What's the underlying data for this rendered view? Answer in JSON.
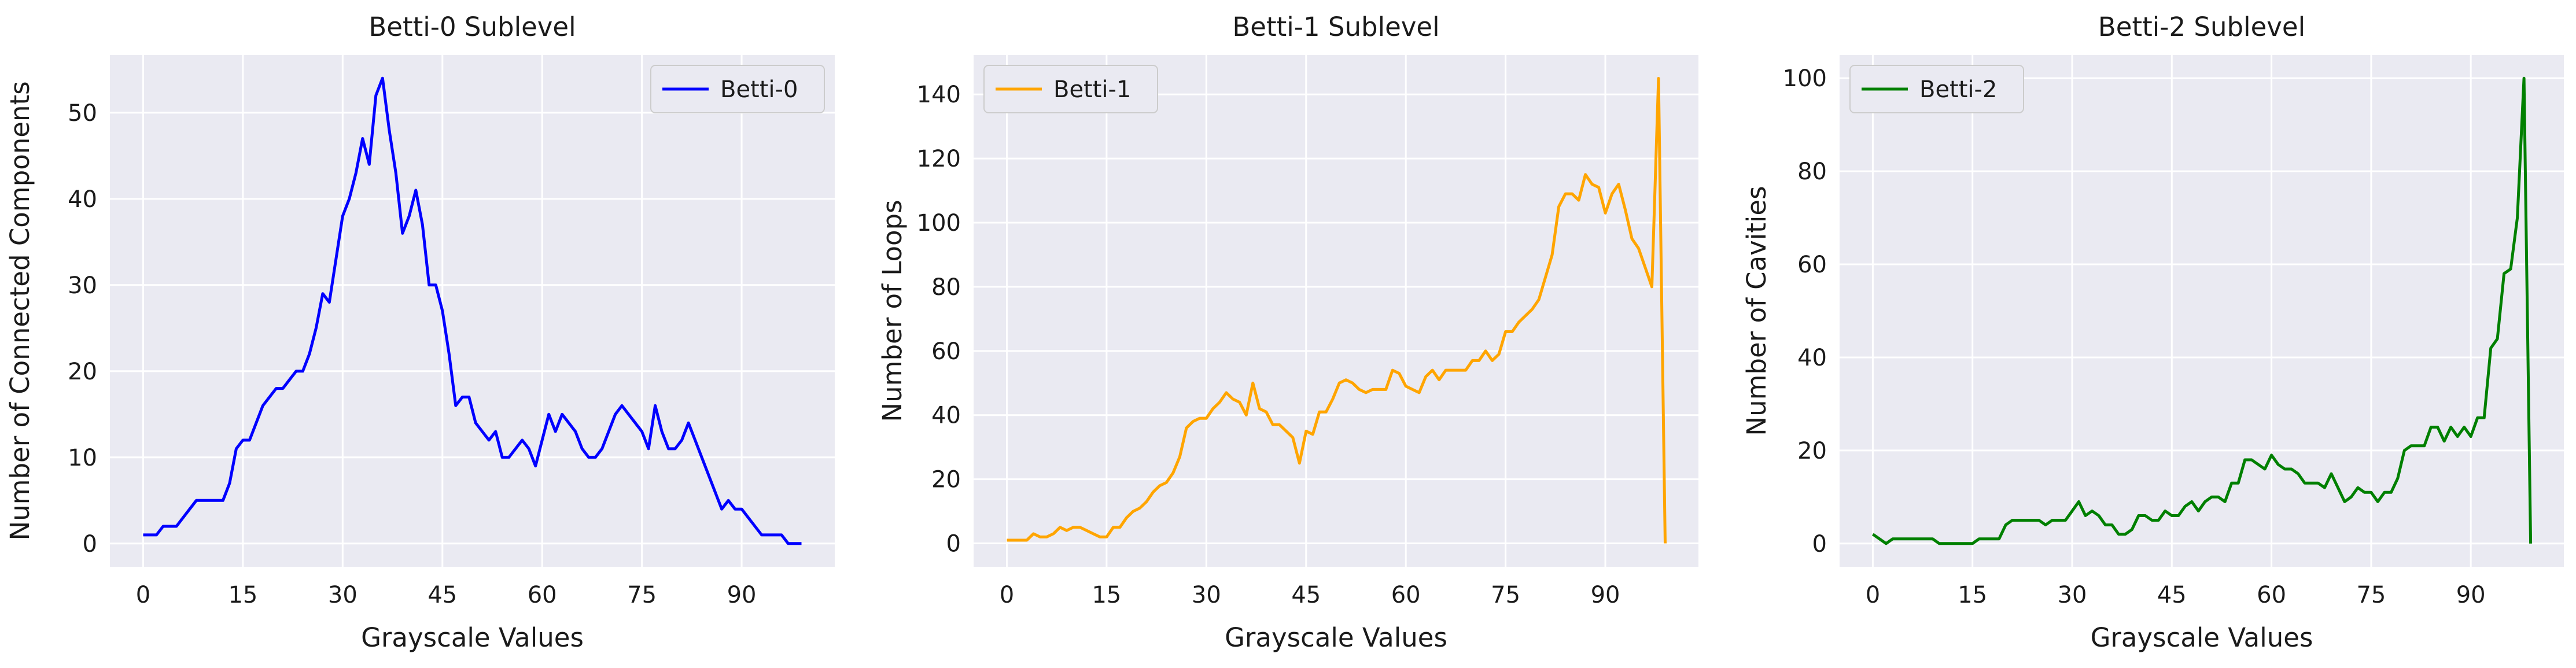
{
  "style": {
    "plot_bg": "#eaeaf2",
    "grid_color": "#ffffff"
  },
  "chart_data": [
    {
      "type": "line",
      "title": "Betti-0 Sublevel",
      "xlabel": "Grayscale Values",
      "ylabel": "Number of Connected Components",
      "xlim": [
        -5,
        104
      ],
      "ylim": [
        -2.7,
        56.7
      ],
      "xticks": [
        0,
        15,
        30,
        45,
        60,
        75,
        90
      ],
      "yticks": [
        0,
        10,
        20,
        30,
        40,
        50
      ],
      "legend_loc": "upper right",
      "series": [
        {
          "name": "Betti-0",
          "color": "#0000ff",
          "values": [
            1,
            1,
            1,
            2,
            2,
            2,
            3,
            4,
            5,
            5,
            5,
            5,
            5,
            7,
            11,
            12,
            12,
            14,
            16,
            17,
            18,
            18,
            19,
            20,
            20,
            22,
            25,
            29,
            28,
            33,
            38,
            40,
            43,
            47,
            44,
            52,
            54,
            48,
            43,
            36,
            38,
            41,
            37,
            30,
            30,
            27,
            22,
            16,
            17,
            17,
            14,
            13,
            12,
            13,
            10,
            10,
            11,
            12,
            11,
            9,
            12,
            15,
            13,
            15,
            14,
            13,
            11,
            10,
            10,
            11,
            13,
            15,
            16,
            15,
            14,
            13,
            11,
            16,
            13,
            11,
            11,
            12,
            14,
            12,
            10,
            8,
            6,
            4,
            5,
            4,
            4,
            3,
            2,
            1,
            1,
            1,
            1,
            0,
            0,
            0
          ]
        }
      ]
    },
    {
      "type": "line",
      "title": "Betti-1 Sublevel",
      "xlabel": "Grayscale Values",
      "ylabel": "Number of Loops",
      "xlim": [
        -5,
        104
      ],
      "ylim": [
        -7.3,
        152.3
      ],
      "xticks": [
        0,
        15,
        30,
        45,
        60,
        75,
        90
      ],
      "yticks": [
        0,
        20,
        40,
        60,
        80,
        100,
        120,
        140
      ],
      "legend_loc": "upper left",
      "series": [
        {
          "name": "Betti-1",
          "color": "#ffa500",
          "values": [
            1,
            1,
            1,
            1,
            3,
            2,
            2,
            3,
            5,
            4,
            5,
            5,
            4,
            3,
            2,
            2,
            5,
            5,
            8,
            10,
            11,
            13,
            16,
            18,
            19,
            22,
            27,
            36,
            38,
            39,
            39,
            42,
            44,
            47,
            45,
            44,
            40,
            50,
            42,
            41,
            37,
            37,
            35,
            33,
            25,
            35,
            34,
            41,
            41,
            45,
            50,
            51,
            50,
            48,
            47,
            48,
            48,
            48,
            54,
            53,
            49,
            48,
            47,
            52,
            54,
            51,
            54,
            54,
            54,
            54,
            57,
            57,
            60,
            57,
            59,
            66,
            66,
            69,
            71,
            73,
            76,
            83,
            90,
            105,
            109,
            109,
            107,
            115,
            112,
            111,
            103,
            109,
            112,
            104,
            95,
            92,
            86,
            80,
            145,
            0
          ]
        }
      ]
    },
    {
      "type": "line",
      "title": "Betti-2 Sublevel",
      "xlabel": "Grayscale Values",
      "ylabel": "Number of Cavities",
      "xlim": [
        -5,
        104
      ],
      "ylim": [
        -5,
        105
      ],
      "xticks": [
        0,
        15,
        30,
        45,
        60,
        75,
        90
      ],
      "yticks": [
        0,
        20,
        40,
        60,
        80,
        100
      ],
      "legend_loc": "upper left",
      "series": [
        {
          "name": "Betti-2",
          "color": "#008000",
          "values": [
            2,
            1,
            0,
            1,
            1,
            1,
            1,
            1,
            1,
            1,
            0,
            0,
            0,
            0,
            0,
            0,
            1,
            1,
            1,
            1,
            4,
            5,
            5,
            5,
            5,
            5,
            4,
            5,
            5,
            5,
            7,
            9,
            6,
            7,
            6,
            4,
            4,
            2,
            2,
            3,
            6,
            6,
            5,
            5,
            7,
            6,
            6,
            8,
            9,
            7,
            9,
            10,
            10,
            9,
            13,
            13,
            18,
            18,
            17,
            16,
            19,
            17,
            16,
            16,
            15,
            13,
            13,
            13,
            12,
            15,
            12,
            9,
            10,
            12,
            11,
            11,
            9,
            11,
            11,
            14,
            20,
            21,
            21,
            21,
            25,
            25,
            22,
            25,
            23,
            25,
            23,
            27,
            27,
            42,
            44,
            58,
            59,
            70,
            100,
            0
          ]
        }
      ]
    }
  ]
}
